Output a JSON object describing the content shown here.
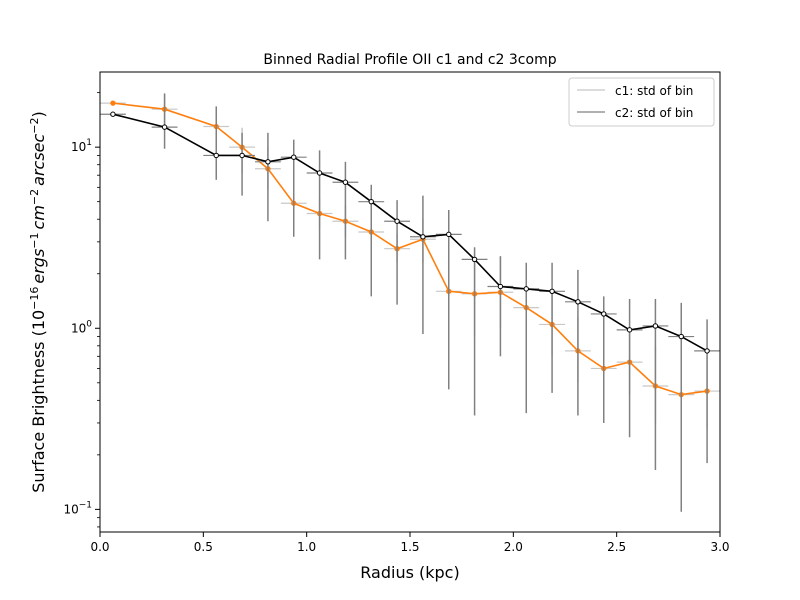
{
  "chart_data": {
    "type": "line",
    "title": "Binned Radial Profile OII c1 and c2 3comp",
    "xlabel": "Radius (kpc)",
    "ylabel_parts": [
      {
        "t": "Surface Brightness (10",
        "style": "normal",
        "shift": 0
      },
      {
        "t": "−16",
        "style": "normal",
        "shift": -1
      },
      {
        "t": "erg",
        "style": "italic",
        "shift": 0
      },
      {
        "t": "s",
        "style": "italic",
        "shift": 0
      },
      {
        "t": "−1",
        "style": "normal",
        "shift": -1
      },
      {
        "t": "cm",
        "style": "italic",
        "shift": 0
      },
      {
        "t": "−2",
        "style": "normal",
        "shift": -1
      },
      {
        "t": "arcsec",
        "style": "italic",
        "shift": 0
      },
      {
        "t": "−2",
        "style": "normal",
        "shift": -1
      },
      {
        "t": ")",
        "style": "normal",
        "shift": 0
      }
    ],
    "xlim": [
      0.0,
      3.0
    ],
    "ylim": [
      0.075,
      26
    ],
    "yscale": "log",
    "grid": false,
    "legend_position": "top-right",
    "x_ticks": [
      {
        "v": 0.0,
        "label": "0.0"
      },
      {
        "v": 0.5,
        "label": "0.5"
      },
      {
        "v": 1.0,
        "label": "1.0"
      },
      {
        "v": 1.5,
        "label": "1.5"
      },
      {
        "v": 2.0,
        "label": "2.0"
      },
      {
        "v": 2.5,
        "label": "2.5"
      },
      {
        "v": 3.0,
        "label": "3.0"
      }
    ],
    "y_major_ticks": [
      {
        "v": 0.1,
        "base": "10",
        "exp": "−1"
      },
      {
        "v": 1.0,
        "base": "10",
        "exp": "0"
      },
      {
        "v": 10.0,
        "base": "10",
        "exp": "1"
      }
    ],
    "y_minor_ticks": [
      0.08,
      0.09,
      0.2,
      0.3,
      0.4,
      0.5,
      0.6,
      0.7,
      0.8,
      0.9,
      2,
      3,
      4,
      5,
      6,
      7,
      8,
      9,
      20
    ],
    "bin_halfwidth": 0.0625,
    "x": [
      0.0625,
      0.3125,
      0.5625,
      0.6875,
      0.8125,
      0.9375,
      1.0625,
      1.1875,
      1.3125,
      1.4375,
      1.5625,
      1.6875,
      1.8125,
      1.9375,
      2.0625,
      2.1875,
      2.3125,
      2.4375,
      2.5625,
      2.6875,
      2.8125,
      2.9375
    ],
    "series": [
      {
        "name": "c1: std of bin",
        "line_color": "#ff7f0e",
        "errorbar_color": "#c8c8c8",
        "y": [
          17.5,
          16.2,
          13.0,
          10.0,
          7.6,
          4.9,
          4.3,
          3.9,
          3.4,
          2.75,
          3.1,
          1.6,
          1.55,
          1.58,
          1.3,
          1.05,
          0.75,
          0.6,
          0.65,
          0.48,
          0.43,
          0.45
        ],
        "y_low": [
          17.5,
          13.0,
          9.0,
          7.2,
          5.8,
          3.8,
          3.6,
          3.2,
          2.7,
          2.3,
          2.3,
          0.9,
          0.9,
          1.0,
          0.9,
          0.7,
          0.5,
          0.4,
          0.43,
          0.3,
          0.28,
          0.28
        ],
        "y_high": [
          17.5,
          19.5,
          16.5,
          12.8,
          10.0,
          6.3,
          5.2,
          4.8,
          4.2,
          3.3,
          4.0,
          2.6,
          2.6,
          2.5,
          2.0,
          1.6,
          1.15,
          0.95,
          1.0,
          0.8,
          0.65,
          0.7
        ]
      },
      {
        "name": "c2: std of bin",
        "line_color": "#000000",
        "errorbar_color": "#808080",
        "y": [
          15.2,
          12.9,
          9.0,
          9.0,
          8.3,
          8.8,
          7.2,
          6.4,
          5.0,
          3.9,
          3.2,
          3.3,
          2.4,
          1.7,
          1.65,
          1.6,
          1.4,
          1.2,
          0.98,
          1.03,
          0.9,
          0.75
        ],
        "y_low": [
          15.2,
          9.8,
          6.6,
          5.4,
          3.9,
          3.2,
          2.4,
          2.4,
          1.5,
          1.35,
          0.93,
          0.46,
          0.33,
          0.7,
          0.34,
          0.44,
          0.33,
          0.3,
          0.25,
          0.165,
          0.097,
          0.18
        ],
        "y_high": [
          15.2,
          19.8,
          16.8,
          12.0,
          12.0,
          11.0,
          9.6,
          8.3,
          6.2,
          5.1,
          5.4,
          4.5,
          2.8,
          2.5,
          2.3,
          2.3,
          2.1,
          1.5,
          1.45,
          1.45,
          1.38,
          1.12
        ]
      }
    ]
  }
}
